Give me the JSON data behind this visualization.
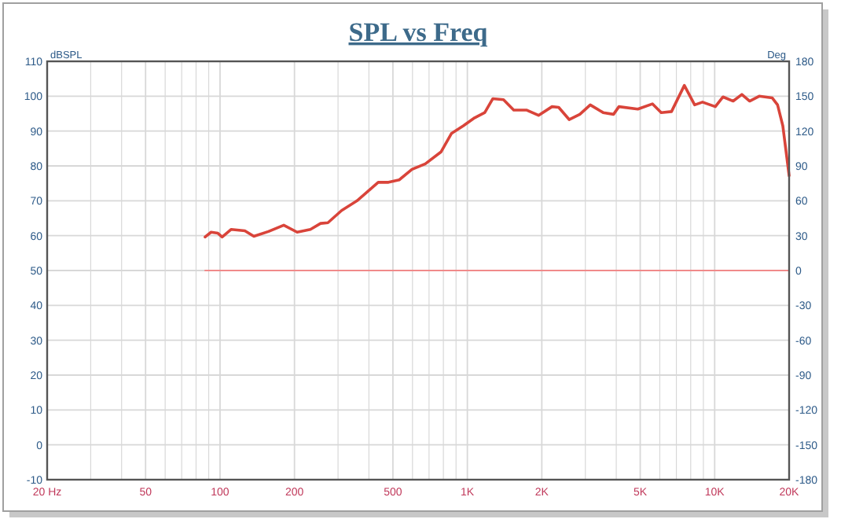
{
  "chart_data": {
    "type": "line",
    "title": "SPL vs Freq",
    "ylabel": "dBSPL",
    "y2label": "Deg",
    "log": "x",
    "grid": true,
    "xlim": [
      20,
      20000
    ],
    "xticks": [
      {
        "value": 20,
        "label": "20 Hz"
      },
      {
        "value": 30,
        "label": null
      },
      {
        "value": 40,
        "label": null
      },
      50,
      {
        "value": 60,
        "label": null
      },
      {
        "value": 70,
        "label": null
      },
      {
        "value": 80,
        "label": null
      },
      {
        "value": 90,
        "label": null
      },
      100,
      200,
      {
        "value": 300,
        "label": null
      },
      {
        "value": 400,
        "label": null
      },
      500,
      {
        "value": 600,
        "label": null
      },
      {
        "value": 700,
        "label": null
      },
      {
        "value": 800,
        "label": null
      },
      {
        "value": 900,
        "label": null
      },
      {
        "value": 1000,
        "label": "1K"
      },
      {
        "value": 2000,
        "label": "2K"
      },
      {
        "value": 3000,
        "label": null
      },
      {
        "value": 4000,
        "label": null
      },
      {
        "value": 5000,
        "label": "5K"
      },
      {
        "value": 6000,
        "label": null
      },
      {
        "value": 7000,
        "label": null
      },
      {
        "value": 8000,
        "label": null
      },
      {
        "value": 9000,
        "label": null
      },
      {
        "value": 10000,
        "label": "10K"
      },
      {
        "value": 20000,
        "label": "20K"
      }
    ],
    "ylim": [
      -10,
      110
    ],
    "yticks": [
      -10,
      0,
      10,
      20,
      30,
      40,
      50,
      60,
      70,
      80,
      90,
      100,
      110
    ],
    "y2lim": [
      -180,
      180
    ],
    "y2ticks": [
      -180,
      -150,
      -120,
      -90,
      -60,
      -30,
      0,
      30,
      60,
      90,
      120,
      150,
      180
    ],
    "series": [
      {
        "color": "#d9443a",
        "x": [
          87,
          92,
          98,
          102,
          111,
          126,
          137,
          157,
          181,
          205,
          232,
          255,
          273,
          310,
          358,
          436,
          480,
          530,
          597,
          676,
          782,
          862,
          963,
          1070,
          1176,
          1268,
          1400,
          1540,
          1740,
          1940,
          2200,
          2340,
          2580,
          2850,
          3140,
          3540,
          3900,
          4100,
          4890,
          5600,
          6080,
          6690,
          7540,
          8300,
          8930,
          10060,
          10810,
          11880,
          12880,
          13850,
          15130,
          17100,
          17960,
          18860,
          20000
        ],
        "values": [
          59.6,
          61,
          60.7,
          59.6,
          61.8,
          61.4,
          59.8,
          61.2,
          63,
          61,
          61.8,
          63.5,
          63.7,
          67.2,
          70,
          75.3,
          75.3,
          76,
          79,
          80.6,
          84,
          89.3,
          91.5,
          93.8,
          95.3,
          99.3,
          99,
          96,
          96,
          94.5,
          97,
          96.8,
          93.3,
          94.8,
          97.5,
          95.3,
          94.8,
          97,
          96.3,
          97.8,
          95.3,
          95.6,
          103.1,
          97.5,
          98.3,
          97,
          99.8,
          98.6,
          100.5,
          98.6,
          100,
          99.5,
          97.5,
          91.5,
          77.2
        ]
      },
      {
        "color": "#f08a8a",
        "axis": "y2",
        "x": [
          87,
          20000
        ],
        "values": [
          0,
          0
        ]
      }
    ]
  }
}
